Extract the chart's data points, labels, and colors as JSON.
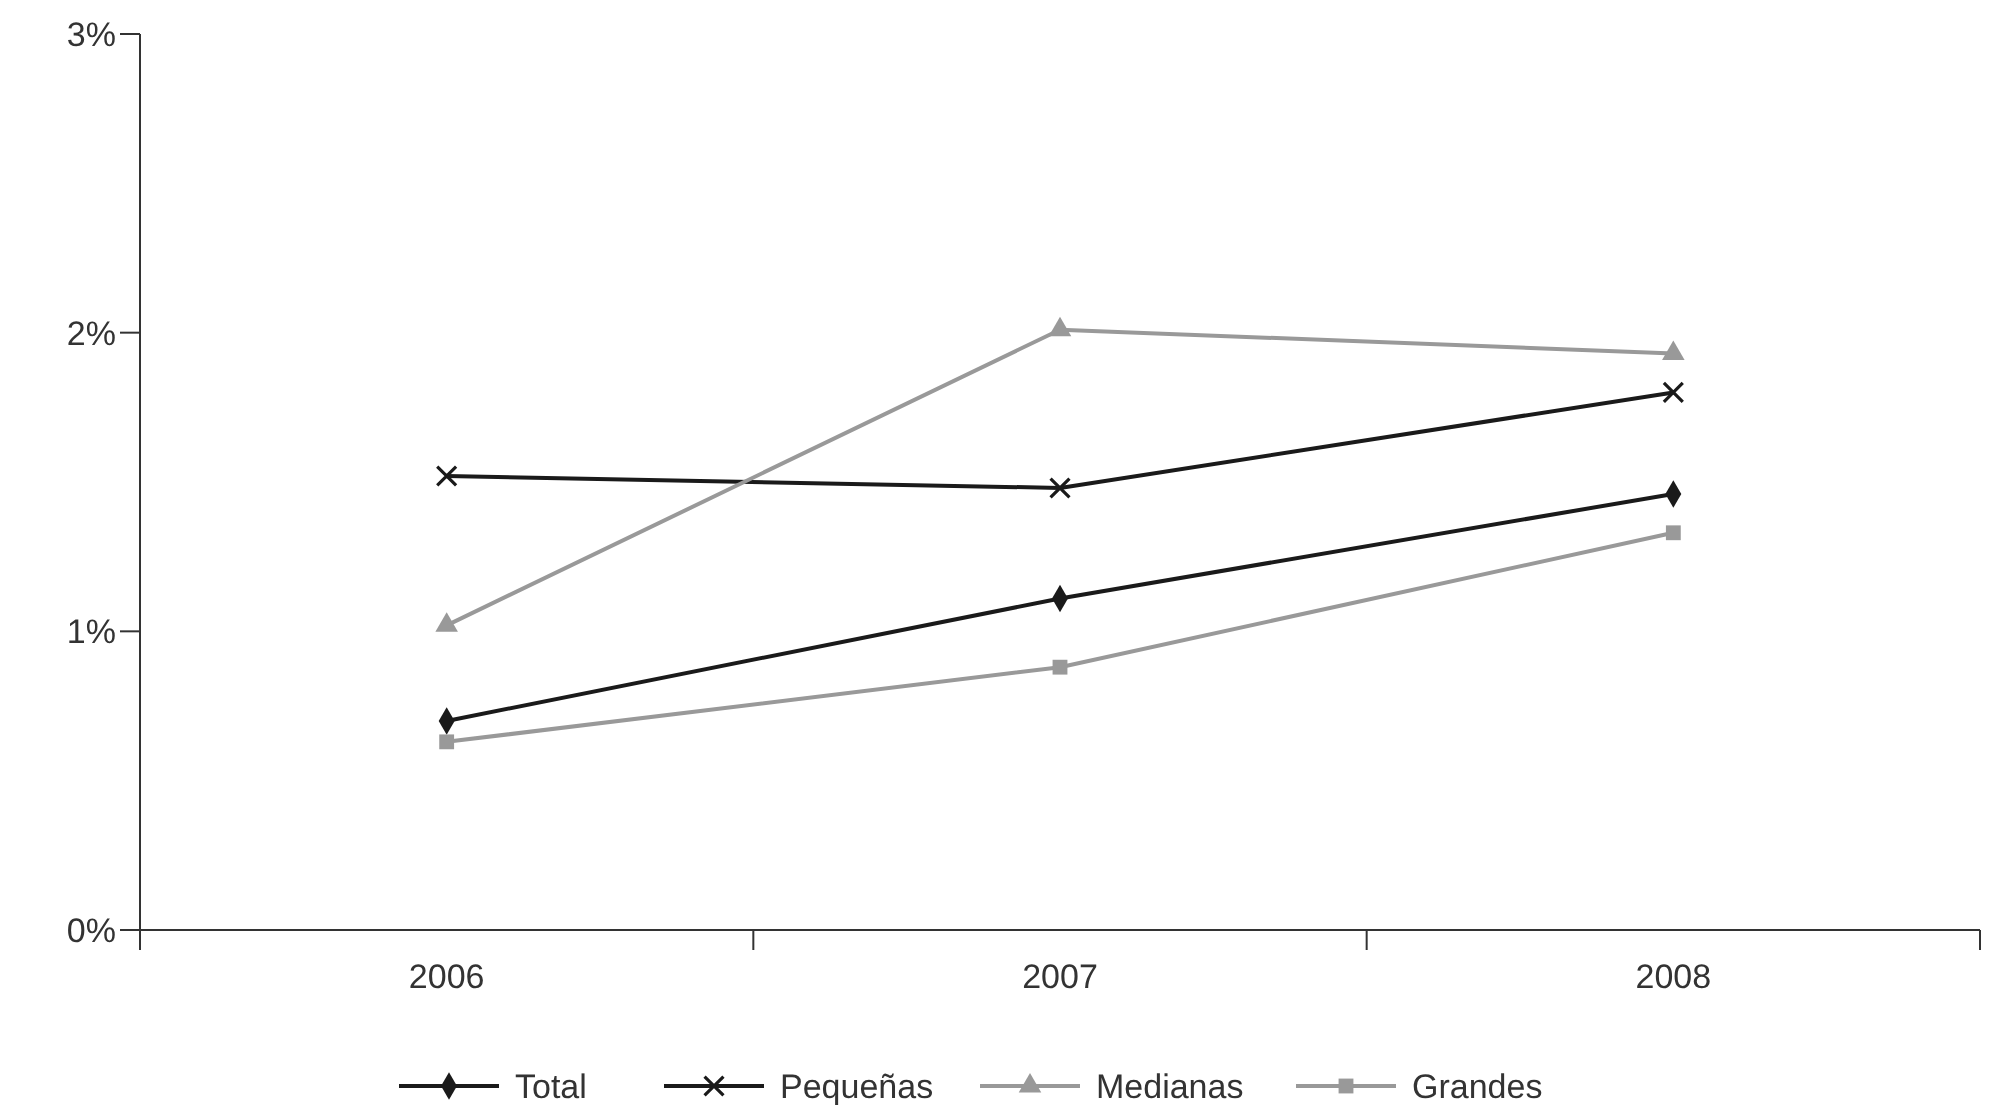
{
  "chart_data": {
    "type": "line",
    "categories": [
      "2006",
      "2007",
      "2008"
    ],
    "ylim": [
      0,
      3
    ],
    "yticks": [
      {
        "value": 0,
        "label": "0%"
      },
      {
        "value": 1,
        "label": "1%"
      },
      {
        "value": 2,
        "label": "2%"
      },
      {
        "value": 3,
        "label": "3%"
      }
    ],
    "grid": false,
    "legend": "bottom",
    "line_style": "solid",
    "series": [
      {
        "name": "Total",
        "color": "#1a1a1a",
        "marker": "diamond",
        "values": [
          0.7,
          1.11,
          1.46
        ]
      },
      {
        "name": "Pequeñas",
        "color": "#1a1a1a",
        "marker": "cross",
        "values": [
          1.52,
          1.48,
          1.8
        ]
      },
      {
        "name": "Medianas",
        "color": "#999999",
        "marker": "triangle",
        "values": [
          1.02,
          2.01,
          1.93
        ]
      },
      {
        "name": "Grandes",
        "color": "#999999",
        "marker": "square",
        "values": [
          0.63,
          0.88,
          1.33
        ]
      }
    ]
  }
}
